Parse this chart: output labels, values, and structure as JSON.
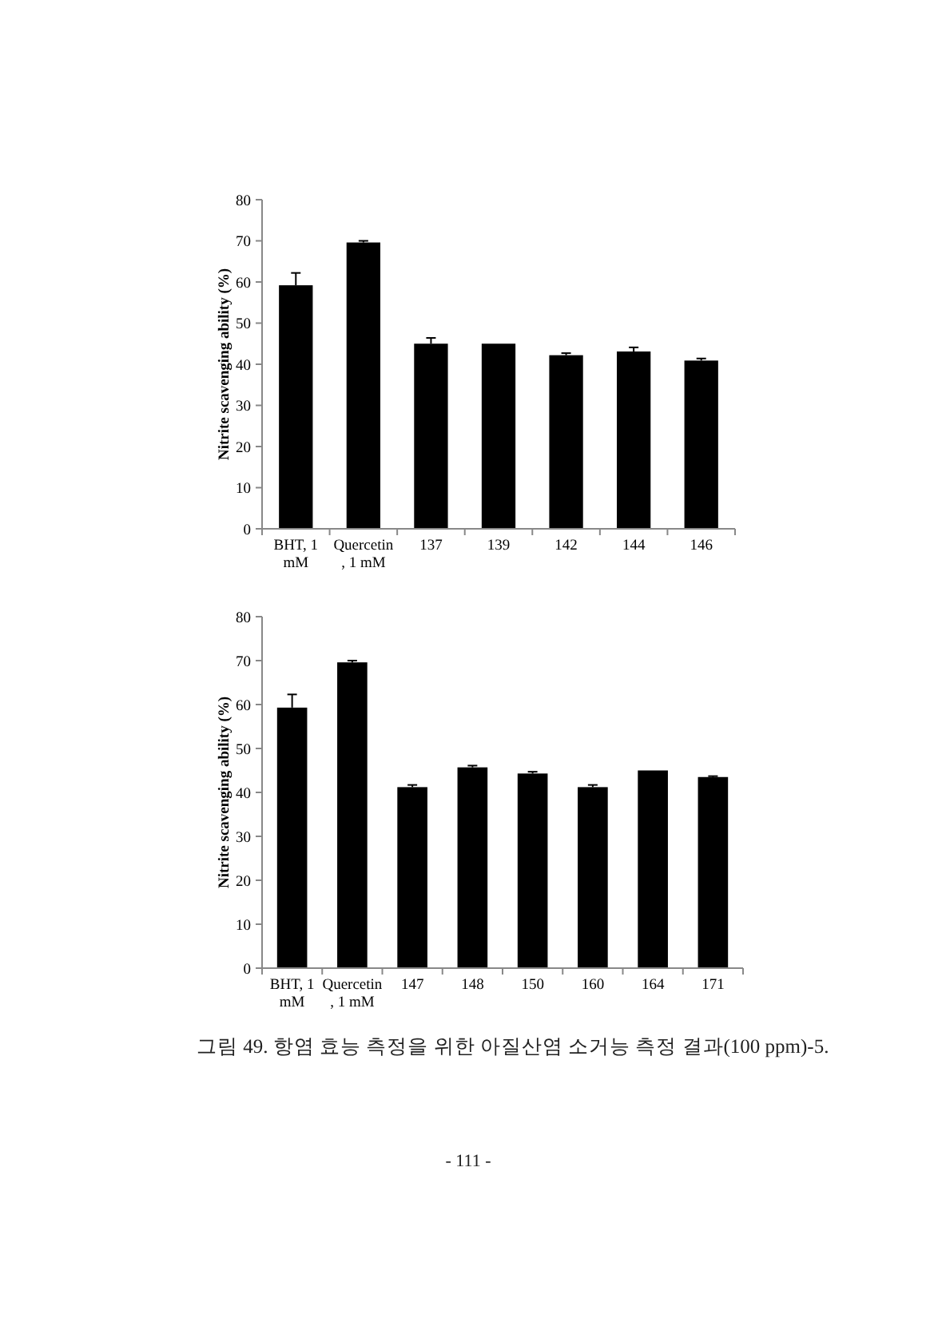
{
  "chart_data": [
    {
      "type": "bar",
      "ylabel": "Nitrite scavenging ability (%)",
      "categories": [
        "BHT, 1 mM",
        "Quercetin , 1 mM",
        "137",
        "139",
        "142",
        "144",
        "146"
      ],
      "values": [
        59.2,
        69.6,
        45.0,
        45.0,
        42.2,
        43.1,
        40.9
      ],
      "errors": [
        3.0,
        0.4,
        1.4,
        null,
        0.5,
        1.0,
        0.5
      ],
      "color": "#000000",
      "ylim": [
        0,
        80
      ],
      "yticks": [
        0,
        10,
        20,
        30,
        40,
        50,
        60,
        70,
        80
      ]
    },
    {
      "type": "bar",
      "ylabel": "Nitrite scavenging ability (%)",
      "categories": [
        "BHT, 1 mM",
        "Quercetin , 1 mM",
        "147",
        "148",
        "150",
        "160",
        "164",
        "171"
      ],
      "values": [
        59.3,
        69.6,
        41.2,
        45.7,
        44.3,
        41.2,
        45.0,
        43.5
      ],
      "errors": [
        3.0,
        0.4,
        0.5,
        0.4,
        0.4,
        0.5,
        null,
        0.2
      ],
      "color": "#000000",
      "ylim": [
        0,
        80
      ],
      "yticks": [
        0,
        10,
        20,
        30,
        40,
        50,
        60,
        70,
        80
      ],
      "annotations": [
        "그림 49. 항염 효능 측정을 위한 아질산염 소거능 측정 결과(100 ppm)-5.",
        "- 111 -"
      ]
    }
  ]
}
